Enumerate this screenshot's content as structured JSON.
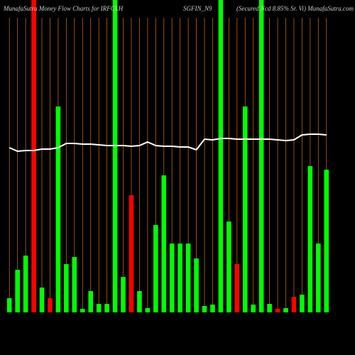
{
  "chart_data": {
    "type": "bar",
    "title_left": "MunafaSutra  Money Flow  Charts for IRFCLH",
    "title_center": "SGFIN_N9",
    "title_right": "(Secured Ncd 8.85% Sr. Vi) MunafaSutra.com",
    "categories": [
      null,
      null,
      null,
      null,
      null,
      null,
      null,
      null,
      null,
      null,
      null,
      null,
      null,
      null,
      null,
      null,
      null,
      null,
      null,
      null,
      null,
      null,
      null,
      null,
      null,
      null,
      null,
      null,
      null,
      null,
      null,
      null,
      null,
      null,
      null,
      null,
      null,
      null,
      null,
      null
    ],
    "values": [
      20,
      60,
      80,
      440,
      35,
      20,
      290,
      68,
      78,
      5,
      30,
      12,
      12,
      440,
      50,
      165,
      30,
      6,
      123,
      193,
      97,
      97,
      97,
      76,
      9,
      11,
      440,
      128,
      68,
      290,
      11,
      440,
      12,
      5,
      6,
      22,
      25,
      206,
      97,
      201
    ],
    "colors": [
      "#00ff00",
      "#00ff00",
      "#00ff00",
      "#ff0000",
      "#00ff00",
      "#ff0000",
      "#00ff00",
      "#00ff00",
      "#00ff00",
      "#00ff00",
      "#00ff00",
      "#00ff00",
      "#00ff00",
      "#00ff00",
      "#00ff00",
      "#ff0000",
      "#00ff00",
      "#00ff00",
      "#00ff00",
      "#00ff00",
      "#00ff00",
      "#00ff00",
      "#00ff00",
      "#00ff00",
      "#00ff00",
      "#00ff00",
      "#00ff00",
      "#00ff00",
      "#ff0000",
      "#00ff00",
      "#00ff00",
      "#00ff00",
      "#00ff00",
      "#ff0000",
      "#00ff00",
      "#ff0000",
      "#00ff00",
      "#00ff00",
      "#00ff00",
      "#00ff00"
    ],
    "line": {
      "color": "#ffffff",
      "values": [
        232,
        227,
        228,
        228,
        230,
        230,
        232,
        238,
        238,
        237,
        237,
        236,
        235,
        235,
        235,
        234,
        235,
        240,
        235,
        234,
        234,
        233,
        233,
        229,
        244,
        243,
        245,
        245,
        244,
        244,
        244,
        244,
        244,
        243,
        242,
        243,
        250,
        251,
        251,
        250
      ]
    },
    "ylim": [
      0,
      440
    ],
    "grid": true,
    "grid_color": "#b8660b"
  }
}
